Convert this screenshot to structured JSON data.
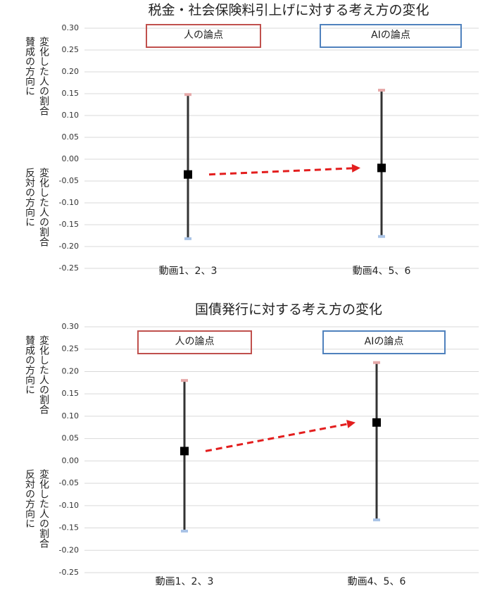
{
  "chart_data": [
    {
      "type": "errorbar",
      "title": "税金・社会保険料引上げに対する考え方の変化",
      "categories": [
        "動画1、2、3",
        "動画4、5、6"
      ],
      "values": [
        -0.035,
        -0.02
      ],
      "upper": [
        0.148,
        0.158
      ],
      "lower": [
        -0.182,
        -0.177
      ],
      "color": "#000000",
      "bar_color": "#333333",
      "upper_color": "#e6a9a9",
      "lower_color": "#a9c3e6",
      "ylim": [
        -0.25,
        0.3
      ],
      "yticks": [
        {
          "value": -0.25,
          "label": "-0.25"
        },
        {
          "value": -0.2,
          "label": "-0.20"
        },
        -0.15,
        {
          "value": -0.1,
          "label": "-0.10"
        },
        -0.05,
        {
          "value": 0,
          "label": "0.00"
        },
        0.05,
        {
          "value": 0.1,
          "label": "0.10"
        },
        0.15,
        {
          "value": 0.2,
          "label": "0.20"
        },
        0.25,
        {
          "value": 0.3,
          "label": "0.30"
        }
      ],
      "grid": true,
      "annotations": [
        {
          "text": "人の論点",
          "color": "#c0504d"
        },
        {
          "text": "AIの論点",
          "color": "#4f81bd"
        }
      ],
      "upper_label": [
        "変化した人の割合",
        "賛成の方向に"
      ],
      "lower_label": [
        "変化した人の割合",
        "反対の方向に"
      ]
    },
    {
      "type": "errorbar",
      "title": "国債発行に対する考え方の変化",
      "categories": [
        "動画1、2、3",
        "動画4、5、6"
      ],
      "values": [
        0.022,
        0.086
      ],
      "upper": [
        0.18,
        0.22
      ],
      "lower": [
        -0.157,
        -0.132
      ],
      "color": "#000000",
      "bar_color": "#333333",
      "upper_color": "#e6a9a9",
      "lower_color": "#a9c3e6",
      "ylim": [
        -0.25,
        0.3
      ],
      "yticks": [
        {
          "value": -0.25,
          "label": "-0.25"
        },
        {
          "value": -0.2,
          "label": "-0.20"
        },
        -0.15,
        {
          "value": -0.1,
          "label": "-0.10"
        },
        -0.05,
        {
          "value": 0,
          "label": "0.00"
        },
        0.05,
        {
          "value": 0.1,
          "label": "0.10"
        },
        0.15,
        {
          "value": 0.2,
          "label": "0.20"
        },
        0.25,
        {
          "value": 0.3,
          "label": "0.30"
        }
      ],
      "grid": true,
      "annotations": [
        {
          "text": "人の論点",
          "color": "#c0504d"
        },
        {
          "text": "AIの論点",
          "color": "#4f81bd"
        }
      ],
      "upper_label": [
        "変化した人の割合",
        "賛成の方向に"
      ],
      "lower_label": [
        "変化した人の割合",
        "反対の方向に"
      ]
    }
  ]
}
